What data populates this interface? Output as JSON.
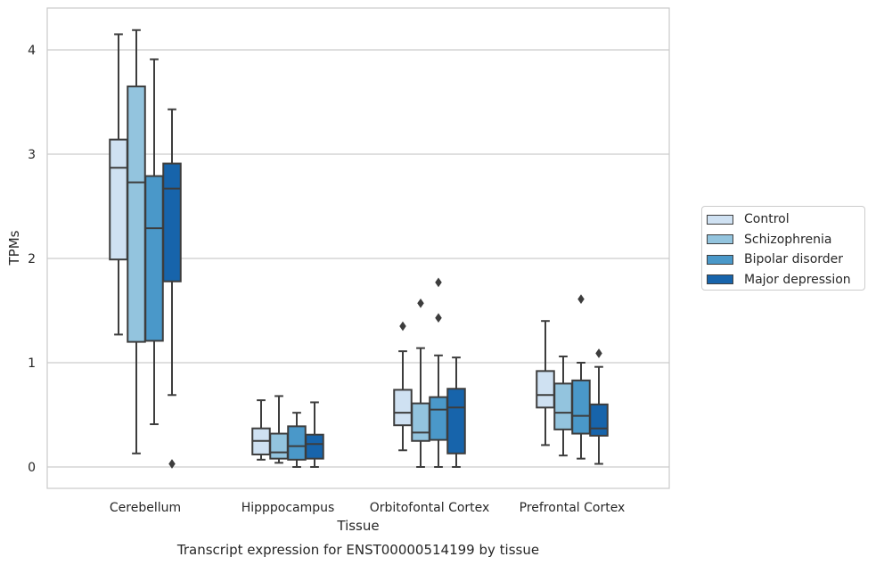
{
  "chart_data": {
    "type": "box",
    "title": "Transcript expression for ENST00000514199 by tissue",
    "xlabel": "Tissue",
    "ylabel": "TPMs",
    "ylim": [
      -0.2,
      4.4
    ],
    "yticks": [
      0,
      1,
      2,
      3,
      4
    ],
    "grid": "horizontal",
    "legend_position": "right",
    "categories": [
      "Cerebellum",
      "Hipppocampus",
      "Orbitofontal Cortex",
      "Prefrontal Cortex"
    ],
    "series": [
      {
        "name": "Control",
        "color": "#cfe1f2",
        "boxes": [
          {
            "whisker_low": 1.27,
            "q1": 1.99,
            "median": 2.87,
            "q3": 3.14,
            "whisker_high": 4.15,
            "outliers": []
          },
          {
            "whisker_low": 0.07,
            "q1": 0.12,
            "median": 0.25,
            "q3": 0.37,
            "whisker_high": 0.64,
            "outliers": []
          },
          {
            "whisker_low": 0.16,
            "q1": 0.4,
            "median": 0.52,
            "q3": 0.74,
            "whisker_high": 1.11,
            "outliers": [
              1.35
            ]
          },
          {
            "whisker_low": 0.21,
            "q1": 0.57,
            "median": 0.69,
            "q3": 0.92,
            "whisker_high": 1.4,
            "outliers": []
          }
        ]
      },
      {
        "name": "Schizophrenia",
        "color": "#93c4de",
        "boxes": [
          {
            "whisker_low": 0.13,
            "q1": 1.2,
            "median": 2.73,
            "q3": 3.65,
            "whisker_high": 4.19,
            "outliers": []
          },
          {
            "whisker_low": 0.04,
            "q1": 0.08,
            "median": 0.14,
            "q3": 0.32,
            "whisker_high": 0.68,
            "outliers": []
          },
          {
            "whisker_low": 0.0,
            "q1": 0.25,
            "median": 0.33,
            "q3": 0.61,
            "whisker_high": 1.14,
            "outliers": [
              1.57
            ]
          },
          {
            "whisker_low": 0.11,
            "q1": 0.36,
            "median": 0.52,
            "q3": 0.8,
            "whisker_high": 1.06,
            "outliers": []
          }
        ]
      },
      {
        "name": "Bipolar disorder",
        "color": "#4a98c9",
        "boxes": [
          {
            "whisker_low": 0.41,
            "q1": 1.21,
            "median": 2.29,
            "q3": 2.79,
            "whisker_high": 3.91,
            "outliers": []
          },
          {
            "whisker_low": 0.0,
            "q1": 0.07,
            "median": 0.2,
            "q3": 0.39,
            "whisker_high": 0.52,
            "outliers": []
          },
          {
            "whisker_low": 0.0,
            "q1": 0.26,
            "median": 0.55,
            "q3": 0.67,
            "whisker_high": 1.07,
            "outliers": [
              1.43,
              1.77
            ]
          },
          {
            "whisker_low": 0.08,
            "q1": 0.32,
            "median": 0.49,
            "q3": 0.83,
            "whisker_high": 1.0,
            "outliers": [
              1.61
            ]
          }
        ]
      },
      {
        "name": "Major depression",
        "color": "#1764ab",
        "boxes": [
          {
            "whisker_low": 0.69,
            "q1": 1.78,
            "median": 2.67,
            "q3": 2.91,
            "whisker_high": 3.43,
            "outliers": [
              0.03
            ]
          },
          {
            "whisker_low": 0.0,
            "q1": 0.08,
            "median": 0.22,
            "q3": 0.31,
            "whisker_high": 0.62,
            "outliers": []
          },
          {
            "whisker_low": 0.0,
            "q1": 0.13,
            "median": 0.57,
            "q3": 0.75,
            "whisker_high": 1.05,
            "outliers": []
          },
          {
            "whisker_low": 0.03,
            "q1": 0.3,
            "median": 0.37,
            "q3": 0.6,
            "whisker_high": 0.96,
            "outliers": [
              1.09
            ]
          }
        ]
      }
    ]
  }
}
